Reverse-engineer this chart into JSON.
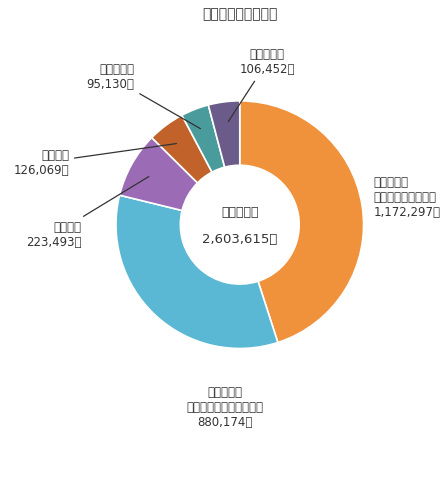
{
  "title": "従業上の地位別構成",
  "center_line1": "従業者総数",
  "center_line2": "2,603,615人",
  "segments": [
    {
      "label_line1": "常用雇用者",
      "label_line2": "（正社員・正職員）",
      "label_line3": "1,172,297人",
      "value": 1172297,
      "color": "#F0923C"
    },
    {
      "label_line1": "常用雇用者",
      "label_line2": "（正社員・正職員以外）",
      "label_line3": "880,174人",
      "value": 880174,
      "color": "#5BB8D4"
    },
    {
      "label_line1": "個人業主",
      "label_line2": "223,493人",
      "label_line3": "",
      "value": 223493,
      "color": "#9B6BB5"
    },
    {
      "label_line1": "有給役員",
      "label_line2": "126,069人",
      "label_line3": "",
      "value": 126069,
      "color": "#C0622A"
    },
    {
      "label_line1": "臨時雇用者",
      "label_line2": "95,130人",
      "label_line3": "",
      "value": 95130,
      "color": "#4A9C9C"
    },
    {
      "label_line1": "家族従業者",
      "label_line2": "106,452人",
      "label_line3": "",
      "value": 106452,
      "color": "#6B5B8A"
    }
  ],
  "background_color": "#FFFFFF"
}
